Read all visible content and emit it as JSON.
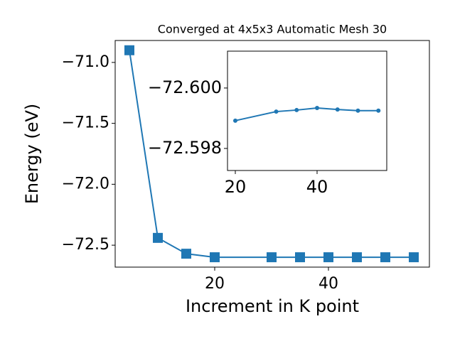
{
  "chart_data": [
    {
      "type": "line",
      "title": "Converged at 4x5x3 Automatic Mesh 30",
      "x_label": "Increment in K point",
      "y_label": "Energy (eV)",
      "marker": "square",
      "color": "#1f77b4",
      "x": [
        5,
        10,
        15,
        20,
        30,
        35,
        40,
        45,
        50,
        55
      ],
      "values": [
        -70.9,
        -72.44,
        -72.57,
        -72.599,
        -72.599,
        -72.599,
        -72.599,
        -72.599,
        -72.599,
        -72.599
      ],
      "xlim": [
        2.5,
        57.75
      ],
      "ylim": [
        -72.68,
        -70.82
      ],
      "xticks": [
        20,
        40
      ],
      "yticks": [
        {
          "value": -71.0,
          "label": "−71.0"
        },
        {
          "value": -71.5,
          "label": "−71.5"
        },
        {
          "value": -72.0,
          "label": "−72.0"
        },
        {
          "value": -72.5,
          "label": "−72.5"
        }
      ]
    },
    {
      "type": "line",
      "marker": "circle",
      "color": "#1f77b4",
      "x": [
        20,
        30,
        35,
        40,
        45,
        50,
        55
      ],
      "values": [
        -72.59892,
        -72.59922,
        -72.59927,
        -72.59934,
        -72.59929,
        -72.59925,
        -72.59925
      ],
      "xlim": [
        18.09,
        57.04
      ],
      "ylim": [
        -72.59727,
        -72.60122
      ],
      "xticks": [
        20,
        40
      ],
      "yticks": [
        {
          "value": -72.6,
          "label": "−72.600"
        },
        {
          "value": -72.598,
          "label": "−72.598"
        }
      ]
    }
  ]
}
